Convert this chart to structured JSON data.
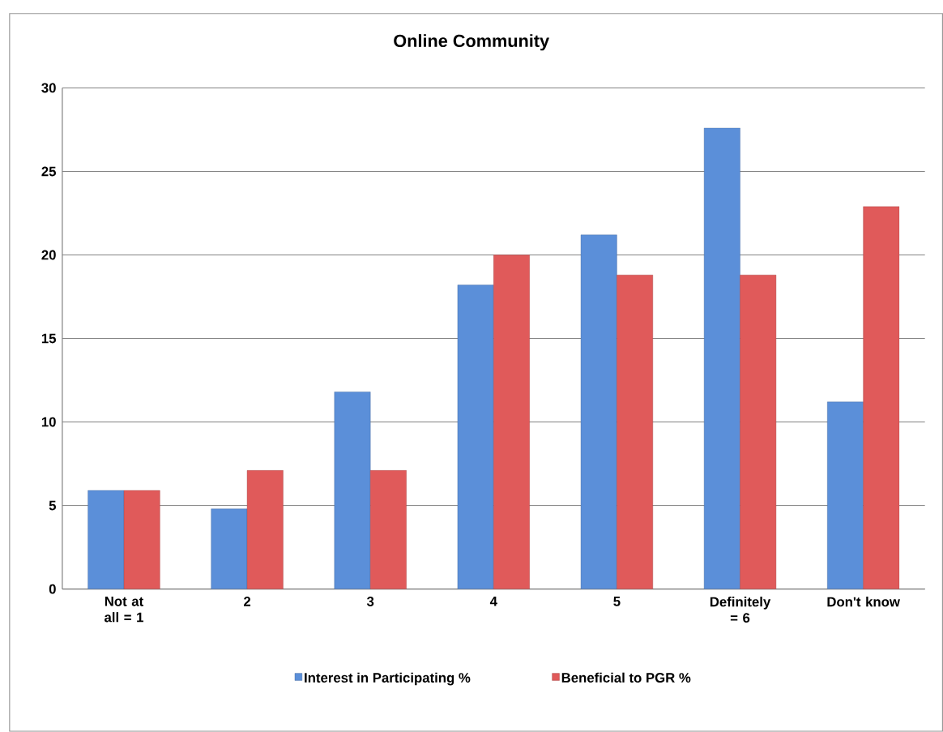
{
  "chart_data": {
    "type": "bar",
    "title": "Online Community",
    "categories": [
      "Not at all = 1",
      "2",
      "3",
      "4",
      "5",
      "Definitely = 6",
      "Don't know"
    ],
    "series": [
      {
        "name": "Interest in Participating %",
        "color": "#5b8fd9",
        "values": [
          5.9,
          4.8,
          11.8,
          18.2,
          21.2,
          27.6,
          11.2
        ]
      },
      {
        "name": "Beneficial to PGR %",
        "color": "#e05a5a",
        "values": [
          5.9,
          7.1,
          7.1,
          20.0,
          18.8,
          18.8,
          22.9
        ]
      }
    ],
    "ylim": [
      0,
      30
    ],
    "yticks": [
      0,
      5,
      10,
      15,
      20,
      25,
      30
    ],
    "grid": "y",
    "legend": "bottom"
  }
}
